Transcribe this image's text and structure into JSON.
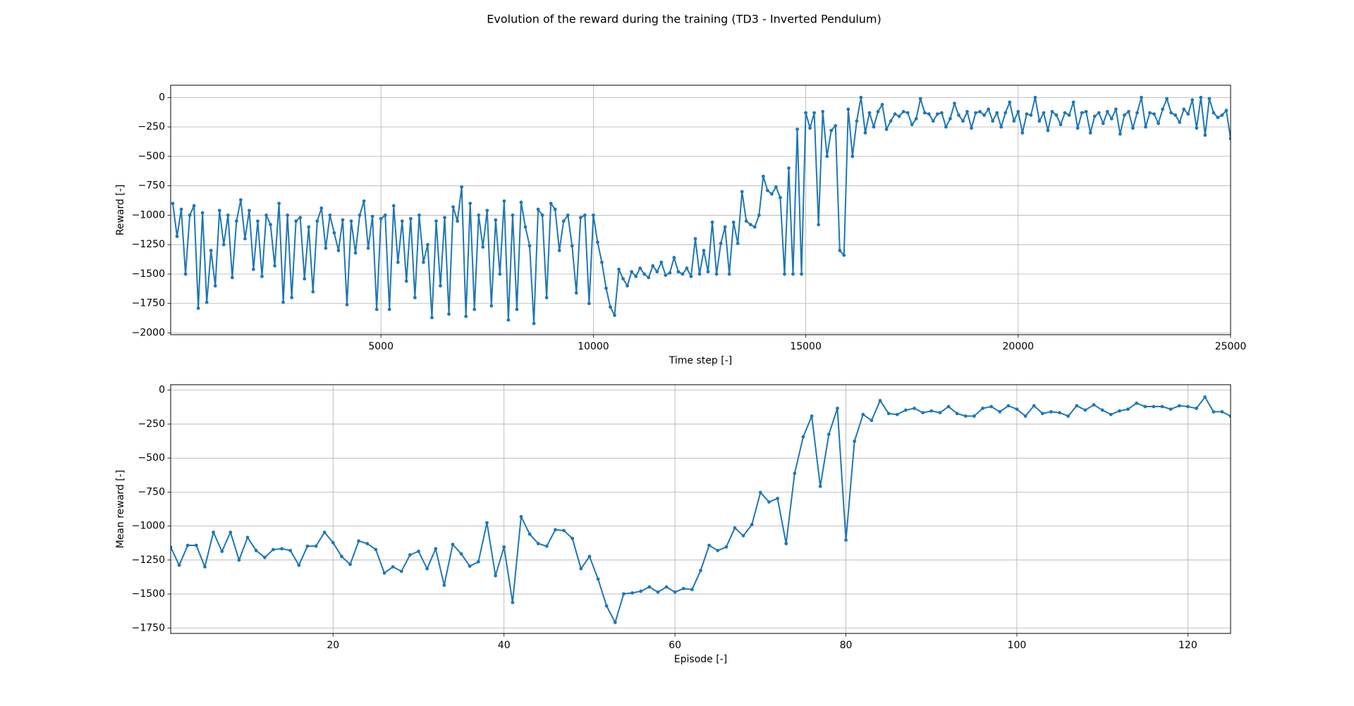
{
  "title": "Evolution of the reward during the training (TD3 - Inverted Pendulum)",
  "chart_data": [
    {
      "type": "line",
      "xlabel": "Time step [-]",
      "ylabel": "Reward [-]",
      "color": "#1f77b4",
      "grid": true,
      "xlim": [
        50,
        25000
      ],
      "ylim": [
        -2015,
        104
      ],
      "xticks": [
        5000,
        10000,
        15000,
        20000,
        25000
      ],
      "yticks": [
        0,
        {
          "value": -250,
          "label": "−250"
        },
        {
          "value": -500,
          "label": "−500"
        },
        {
          "value": -750,
          "label": "−750"
        },
        {
          "value": -1000,
          "label": "−1000"
        },
        {
          "value": -1250,
          "label": "−1250"
        },
        {
          "value": -1500,
          "label": "−1500"
        },
        {
          "value": -1750,
          "label": "−1750"
        },
        {
          "value": -2000,
          "label": "−2000"
        }
      ],
      "x": [
        100,
        200,
        300,
        400,
        500,
        600,
        700,
        800,
        900,
        1000,
        1100,
        1200,
        1300,
        1400,
        1500,
        1600,
        1700,
        1800,
        1900,
        2000,
        2100,
        2200,
        2300,
        2400,
        2500,
        2600,
        2700,
        2800,
        2900,
        3000,
        3100,
        3200,
        3300,
        3400,
        3500,
        3600,
        3700,
        3800,
        3900,
        4000,
        4100,
        4200,
        4300,
        4400,
        4500,
        4600,
        4700,
        4800,
        4900,
        5000,
        5100,
        5200,
        5300,
        5400,
        5500,
        5600,
        5700,
        5800,
        5900,
        6000,
        6100,
        6200,
        6300,
        6400,
        6500,
        6600,
        6700,
        6800,
        6900,
        7000,
        7100,
        7200,
        7300,
        7400,
        7500,
        7600,
        7700,
        7800,
        7900,
        8000,
        8100,
        8200,
        8300,
        8400,
        8500,
        8600,
        8700,
        8800,
        8900,
        9000,
        9100,
        9200,
        9300,
        9400,
        9500,
        9600,
        9700,
        9800,
        9900,
        10000,
        10100,
        10200,
        10300,
        10400,
        10500,
        10600,
        10700,
        10800,
        10900,
        11000,
        11100,
        11200,
        11300,
        11400,
        11500,
        11600,
        11700,
        11800,
        11900,
        12000,
        12100,
        12200,
        12300,
        12400,
        12500,
        12600,
        12700,
        12800,
        12900,
        13000,
        13100,
        13200,
        13300,
        13400,
        13500,
        13600,
        13700,
        13800,
        13900,
        14000,
        14100,
        14200,
        14300,
        14400,
        14500,
        14600,
        14700,
        14800,
        14900,
        15000,
        15100,
        15200,
        15300,
        15400,
        15500,
        15600,
        15700,
        15800,
        15900,
        16000,
        16100,
        16200,
        16300,
        16400,
        16500,
        16600,
        16700,
        16800,
        16900,
        17000,
        17100,
        17200,
        17300,
        17400,
        17500,
        17600,
        17700,
        17800,
        17900,
        18000,
        18100,
        18200,
        18300,
        18400,
        18500,
        18600,
        18700,
        18800,
        18900,
        19000,
        19100,
        19200,
        19300,
        19400,
        19500,
        19600,
        19700,
        19800,
        19900,
        20000,
        20100,
        20200,
        20300,
        20400,
        20500,
        20600,
        20700,
        20800,
        20900,
        21000,
        21100,
        21200,
        21300,
        21400,
        21500,
        21600,
        21700,
        21800,
        21900,
        22000,
        22100,
        22200,
        22300,
        22400,
        22500,
        22600,
        22700,
        22800,
        22900,
        23000,
        23100,
        23200,
        23300,
        23400,
        23500,
        23600,
        23700,
        23800,
        23900,
        24000,
        24100,
        24200,
        24300,
        24400,
        24500,
        24600,
        24700,
        24800,
        24900,
        25000
      ],
      "values": [
        -900,
        -1180,
        -950,
        -1500,
        -1000,
        -920,
        -1790,
        -980,
        -1740,
        -1300,
        -1600,
        -960,
        -1250,
        -1000,
        -1530,
        -1050,
        -870,
        -1200,
        -960,
        -1460,
        -1050,
        -1520,
        -1000,
        -1080,
        -1430,
        -900,
        -1740,
        -1000,
        -1700,
        -1050,
        -1020,
        -1540,
        -1100,
        -1650,
        -1050,
        -940,
        -1280,
        -1000,
        -1150,
        -1300,
        -1040,
        -1760,
        -1050,
        -1320,
        -1000,
        -880,
        -1280,
        -1010,
        -1800,
        -1030,
        -1000,
        -1800,
        -920,
        -1400,
        -1050,
        -1560,
        -1030,
        -1700,
        -1000,
        -1400,
        -1250,
        -1870,
        -1050,
        -1600,
        -1020,
        -1840,
        -930,
        -1050,
        -760,
        -1860,
        -900,
        -1800,
        -1000,
        -1270,
        -960,
        -1770,
        -1040,
        -1500,
        -880,
        -1890,
        -1000,
        -1800,
        -890,
        -1100,
        -1260,
        -1920,
        -950,
        -1000,
        -1700,
        -900,
        -950,
        -1300,
        -1050,
        -1000,
        -1260,
        -1660,
        -1020,
        -1000,
        -1750,
        -1000,
        -1230,
        -1400,
        -1620,
        -1780,
        -1850,
        -1460,
        -1540,
        -1600,
        -1480,
        -1520,
        -1450,
        -1500,
        -1530,
        -1430,
        -1480,
        -1400,
        -1510,
        -1490,
        -1360,
        -1480,
        -1500,
        -1450,
        -1520,
        -1200,
        -1500,
        -1300,
        -1480,
        -1060,
        -1500,
        -1240,
        -1100,
        -1500,
        -1060,
        -1240,
        -800,
        -1050,
        -1080,
        -1100,
        -1000,
        -670,
        -790,
        -820,
        -760,
        -850,
        -1500,
        -600,
        -1500,
        -270,
        -1500,
        -130,
        -260,
        -130,
        -1080,
        -120,
        -500,
        -280,
        -240,
        -1300,
        -1340,
        -100,
        -500,
        -200,
        0,
        -300,
        -130,
        -250,
        -120,
        -60,
        -270,
        -200,
        -140,
        -160,
        -120,
        -130,
        -230,
        -180,
        -10,
        -130,
        -140,
        -200,
        -140,
        -130,
        -250,
        -180,
        -50,
        -150,
        -200,
        -120,
        -260,
        -130,
        -120,
        -150,
        -100,
        -200,
        -130,
        -250,
        -130,
        -40,
        -200,
        -120,
        -300,
        -140,
        -150,
        0,
        -200,
        -130,
        -280,
        -120,
        -150,
        -230,
        -130,
        -150,
        -40,
        -260,
        -130,
        -120,
        -300,
        -160,
        -130,
        -220,
        -120,
        -180,
        -100,
        -310,
        -150,
        -120,
        -260,
        -130,
        0,
        -250,
        -130,
        -140,
        -220,
        -100,
        -10,
        -130,
        -150,
        -210,
        -100,
        -140,
        -20,
        -260,
        0,
        -320,
        -10,
        -130,
        -170,
        -150,
        -110,
        -350
      ]
    },
    {
      "type": "line",
      "xlabel": "Episode [-]",
      "ylabel": "Mean reward [-]",
      "color": "#1f77b4",
      "grid": true,
      "xlim": [
        1,
        125
      ],
      "ylim": [
        -1790,
        40
      ],
      "xticks": [
        20,
        40,
        60,
        80,
        100,
        120
      ],
      "yticks": [
        0,
        {
          "value": -250,
          "label": "−250"
        },
        {
          "value": -500,
          "label": "−500"
        },
        {
          "value": -750,
          "label": "−750"
        },
        {
          "value": -1000,
          "label": "−1000"
        },
        {
          "value": -1250,
          "label": "−1250"
        },
        {
          "value": -1500,
          "label": "−1500"
        },
        {
          "value": -1750,
          "label": "−1750"
        }
      ],
      "x": [
        1,
        2,
        3,
        4,
        5,
        6,
        7,
        8,
        9,
        10,
        11,
        12,
        13,
        14,
        15,
        16,
        17,
        18,
        19,
        20,
        21,
        22,
        23,
        24,
        25,
        26,
        27,
        28,
        29,
        30,
        31,
        32,
        33,
        34,
        35,
        36,
        37,
        38,
        39,
        40,
        41,
        42,
        43,
        44,
        45,
        46,
        47,
        48,
        49,
        50,
        51,
        52,
        53,
        54,
        55,
        56,
        57,
        58,
        59,
        60,
        61,
        62,
        63,
        64,
        65,
        66,
        67,
        68,
        69,
        70,
        71,
        72,
        73,
        74,
        75,
        76,
        77,
        78,
        79,
        80,
        81,
        82,
        83,
        84,
        85,
        86,
        87,
        88,
        89,
        90,
        91,
        92,
        93,
        94,
        95,
        96,
        97,
        98,
        99,
        100,
        101,
        102,
        103,
        104,
        105,
        106,
        107,
        108,
        109,
        110,
        111,
        112,
        113,
        114,
        115,
        116,
        117,
        118,
        119,
        120,
        121,
        122,
        123,
        124,
        125
      ],
      "values": [
        -1155,
        -1288,
        -1142,
        -1142,
        -1300,
        -1046,
        -1186,
        -1046,
        -1250,
        -1084,
        -1180,
        -1231,
        -1173,
        -1167,
        -1180,
        -1288,
        -1148,
        -1148,
        -1046,
        -1122,
        -1224,
        -1282,
        -1110,
        -1129,
        -1173,
        -1346,
        -1300,
        -1333,
        -1212,
        -1186,
        -1314,
        -1167,
        -1435,
        -1135,
        -1205,
        -1295,
        -1263,
        -976,
        -1365,
        -1154,
        -1562,
        -931,
        -1059,
        -1129,
        -1148,
        -1027,
        -1033,
        -1091,
        -1314,
        -1224,
        -1390,
        -1588,
        -1709,
        -1499,
        -1492,
        -1480,
        -1448,
        -1486,
        -1448,
        -1486,
        -1460,
        -1467,
        -1327,
        -1142,
        -1180,
        -1154,
        -1014,
        -1071,
        -989,
        -753,
        -823,
        -797,
        -1129,
        -612,
        -344,
        -191,
        -708,
        -325,
        -134,
        -1103,
        -376,
        -179,
        -223,
        -77,
        -172,
        -179,
        -147,
        -134,
        -166,
        -153,
        -166,
        -121,
        -172,
        -191,
        -191,
        -134,
        -121,
        -159,
        -115,
        -140,
        -191,
        -115,
        -172,
        -159,
        -166,
        -191,
        -115,
        -147,
        -108,
        -147,
        -179,
        -153,
        -140,
        -96,
        -121,
        -121,
        -121,
        -140,
        -115,
        -121,
        -134,
        -51,
        -159,
        -159,
        -191
      ]
    }
  ]
}
